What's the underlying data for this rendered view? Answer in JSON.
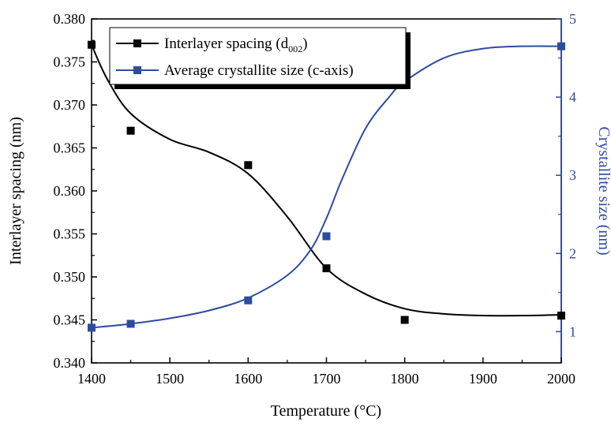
{
  "chart_data": {
    "type": "scatter",
    "title": "",
    "xlabel": "Temperature (°C)",
    "ylabel_left": "Interlayer spacing (nm)",
    "ylabel_right": "Crystallite size (nm)",
    "xlim": [
      1400,
      2000
    ],
    "ylim_left": [
      0.34,
      0.38
    ],
    "ylim_right": [
      0.6,
      5
    ],
    "x_ticks": [
      "1400",
      "1500",
      "1600",
      "1700",
      "1800",
      "1900",
      "2000"
    ],
    "y_left_ticks": [
      "0.340",
      "0.345",
      "0.350",
      "0.355",
      "0.360",
      "0.365",
      "0.370",
      "0.375",
      "0.380"
    ],
    "y_right_ticks": [
      "1",
      "2",
      "3",
      "4",
      "5"
    ],
    "grid": false,
    "legend_position": "top-left",
    "series": [
      {
        "name": "Interlayer spacing (d",
        "name_subscript": "002",
        "name_suffix": ")",
        "axis": "left",
        "color": "#000000",
        "marker": "square",
        "x": [
          1400,
          1450,
          1600,
          1700,
          1800,
          2000
        ],
        "y": [
          0.377,
          0.367,
          0.363,
          0.351,
          0.345,
          0.3455
        ],
        "fit_curve": {
          "x": [
            1400,
            1420,
            1450,
            1500,
            1550,
            1600,
            1650,
            1700,
            1750,
            1800,
            1850,
            1900,
            1950,
            2000
          ],
          "y": [
            0.377,
            0.373,
            0.369,
            0.366,
            0.3645,
            0.362,
            0.357,
            0.351,
            0.348,
            0.3463,
            0.3457,
            0.3455,
            0.3455,
            0.3456
          ]
        }
      },
      {
        "name": "Average crystallite size (c-axis)",
        "axis": "right",
        "color": "#2e4c9e",
        "marker": "square",
        "x": [
          1400,
          1450,
          1600,
          1700,
          2000
        ],
        "y": [
          1.05,
          1.1,
          1.4,
          2.22,
          4.65
        ],
        "fit_curve": {
          "x": [
            1400,
            1450,
            1500,
            1550,
            1600,
            1650,
            1680,
            1700,
            1720,
            1750,
            1780,
            1800,
            1850,
            1900,
            1950,
            2000
          ],
          "y": [
            1.05,
            1.1,
            1.17,
            1.27,
            1.43,
            1.72,
            2.05,
            2.45,
            2.95,
            3.6,
            4.0,
            4.2,
            4.5,
            4.62,
            4.65,
            4.65
          ]
        }
      }
    ]
  }
}
